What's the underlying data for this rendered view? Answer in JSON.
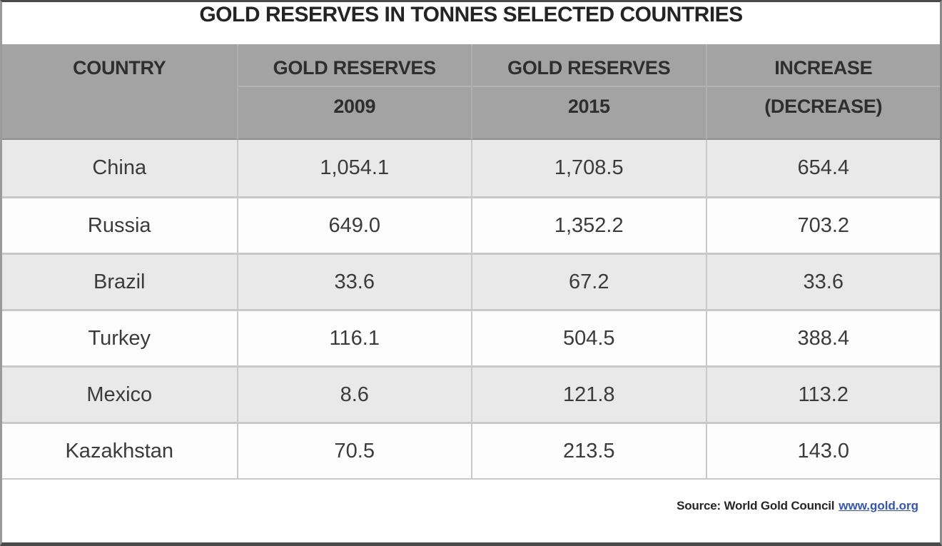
{
  "title": "GOLD RESERVES IN TONNES SELECTED COUNTRIES",
  "table": {
    "columns": [
      {
        "line1": "COUNTRY",
        "line2": ""
      },
      {
        "line1": "GOLD RESERVES",
        "line2": "2009"
      },
      {
        "line1": "GOLD RESERVES",
        "line2": "2015"
      },
      {
        "line1": "INCREASE",
        "line2": "(DECREASE)"
      }
    ],
    "rows": [
      {
        "country": "China",
        "y2009": "1,054.1",
        "y2015": "1,708.5",
        "change": "654.4"
      },
      {
        "country": "Russia",
        "y2009": "649.0",
        "y2015": "1,352.2",
        "change": "703.2"
      },
      {
        "country": "Brazil",
        "y2009": "33.6",
        "y2015": "67.2",
        "change": "33.6"
      },
      {
        "country": "Turkey",
        "y2009": "116.1",
        "y2015": "504.5",
        "change": "388.4"
      },
      {
        "country": "Mexico",
        "y2009": "8.6",
        "y2015": "121.8",
        "change": "113.2"
      },
      {
        "country": "Kazakhstan",
        "y2009": "70.5",
        "y2015": "213.5",
        "change": "143.0"
      }
    ]
  },
  "footer": {
    "source_label": "Source: World Gold Council",
    "source_link": "www.gold.org"
  },
  "colors": {
    "header_bg": "#a3a3a3",
    "row_alt_bg": "#e9e9e9",
    "row_bg": "#fdfdfd",
    "grid_border": "#c9c9c9",
    "text": "#3b3b3b",
    "title_text": "#242424",
    "link_blue": "#3356b0"
  },
  "chart_data": {
    "type": "table",
    "title": "GOLD RESERVES IN TONNES SELECTED COUNTRIES",
    "columns": [
      "COUNTRY",
      "GOLD RESERVES 2009",
      "GOLD RESERVES 2015",
      "INCREASE (DECREASE)"
    ],
    "rows": [
      [
        "China",
        1054.1,
        1708.5,
        654.4
      ],
      [
        "Russia",
        649.0,
        1352.2,
        703.2
      ],
      [
        "Brazil",
        33.6,
        67.2,
        33.6
      ],
      [
        "Turkey",
        116.1,
        504.5,
        388.4
      ],
      [
        "Mexico",
        8.6,
        121.8,
        113.2
      ],
      [
        "Kazakhstan",
        70.5,
        213.5,
        143.0
      ]
    ],
    "source": "World Gold Council www.gold.org"
  }
}
